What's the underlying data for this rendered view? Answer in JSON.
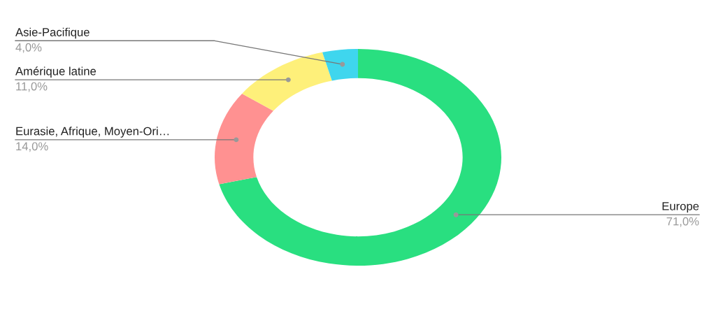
{
  "chart_data": {
    "type": "donut",
    "categories": [
      "Europe",
      "Eurasie, Afrique, Moyen-Ori…",
      "Amérique latine",
      "Asie-Pacifique"
    ],
    "values": [
      71,
      14,
      11,
      4
    ],
    "value_labels": [
      "71,0%",
      "14,0%",
      "11,0%",
      "4,0%"
    ],
    "colors": [
      "#29df80",
      "#ff9191",
      "#fef07a",
      "#3fd6ee"
    ],
    "legend": false
  }
}
